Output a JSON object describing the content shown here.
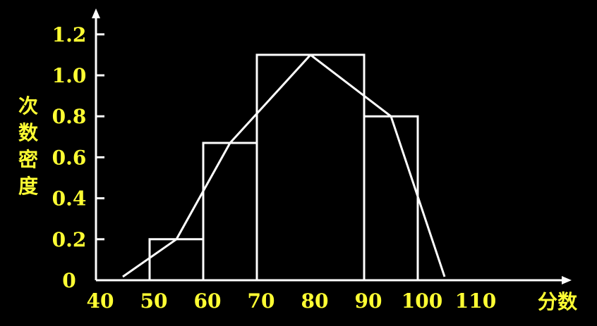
{
  "chart_data": {
    "type": "bar",
    "title": "",
    "xlabel": "分数",
    "ylabel": "次数密度",
    "xlim": [
      40,
      112
    ],
    "ylim": [
      0,
      1.25
    ],
    "x_ticks": [
      "40",
      "50",
      "60",
      "70",
      "80",
      "90",
      "100",
      "110"
    ],
    "y_ticks": [
      "0",
      "0.2",
      "0.4",
      "0.6",
      "0.8",
      "1.0",
      "1.2"
    ],
    "histogram": [
      {
        "x0": 50,
        "x1": 60,
        "value": 0.2
      },
      {
        "x0": 60,
        "x1": 70,
        "value": 0.67
      },
      {
        "x0": 70,
        "x1": 90,
        "value": 1.1
      },
      {
        "x0": 90,
        "x1": 100,
        "value": 0.8
      }
    ],
    "polygon": [
      {
        "x": 45,
        "y": 0
      },
      {
        "x": 55,
        "y": 0.2
      },
      {
        "x": 65,
        "y": 0.67
      },
      {
        "x": 80,
        "y": 1.1
      },
      {
        "x": 95,
        "y": 0.8
      },
      {
        "x": 105,
        "y": 0
      }
    ],
    "colors": {
      "background": "#000000",
      "axis": "#ffffff",
      "labels": "#ffff33"
    }
  }
}
